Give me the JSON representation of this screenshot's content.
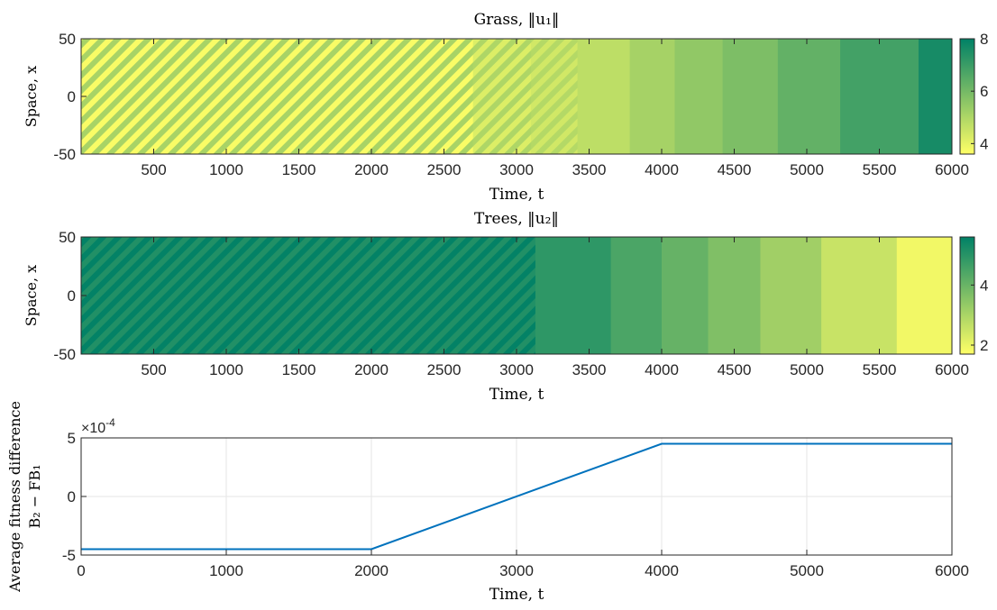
{
  "chart_data": [
    {
      "type": "heatmap",
      "title": "Grass, ‖u₁‖",
      "xlabel": "Time, t",
      "ylabel": "Space, x",
      "xlim": [
        0,
        6000
      ],
      "ylim": [
        -50,
        50
      ],
      "xticks": [
        "500",
        "1000",
        "1500",
        "2000",
        "2500",
        "3000",
        "3500",
        "4000",
        "4500",
        "5000",
        "5500",
        "6000"
      ],
      "yticks": [
        "-50",
        "0",
        "50"
      ],
      "colorbar": {
        "min": 3.6,
        "max": 8,
        "ticks": [
          "4",
          "6",
          "8"
        ]
      },
      "striped_until": 3420,
      "bands": [
        {
          "start": 0,
          "end": 2700,
          "value": 4.5,
          "stripe_low": 3.7,
          "stripe_high": 5.1
        },
        {
          "start": 2700,
          "end": 3100,
          "value": 4.6,
          "stripe_low": 4.2,
          "stripe_high": 5.0
        },
        {
          "start": 3100,
          "end": 3420,
          "value": 4.7,
          "stripe_low": 4.4,
          "stripe_high": 4.9
        },
        {
          "start": 3420,
          "end": 3780,
          "value": 4.75
        },
        {
          "start": 3780,
          "end": 4090,
          "value": 5.15
        },
        {
          "start": 4090,
          "end": 4420,
          "value": 5.5
        },
        {
          "start": 4420,
          "end": 4800,
          "value": 5.85
        },
        {
          "start": 4800,
          "end": 5230,
          "value": 6.3
        },
        {
          "start": 5230,
          "end": 5770,
          "value": 6.85
        },
        {
          "start": 5770,
          "end": 6000,
          "value": 7.6
        }
      ]
    },
    {
      "type": "heatmap",
      "title": "Trees, ‖u₂‖",
      "xlabel": "Time, t",
      "ylabel": "Space, x",
      "xlim": [
        0,
        6000
      ],
      "ylim": [
        -50,
        50
      ],
      "xticks": [
        "500",
        "1000",
        "1500",
        "2000",
        "2500",
        "3000",
        "3500",
        "4000",
        "4500",
        "5000",
        "5500",
        "6000"
      ],
      "yticks": [
        "-50",
        "0",
        "50"
      ],
      "colorbar": {
        "min": 1.7,
        "max": 5.6,
        "ticks": [
          "2",
          "4"
        ]
      },
      "striped_until": 3130,
      "bands": [
        {
          "start": 0,
          "end": 3130,
          "value": 5.3,
          "stripe_low": 5.1,
          "stripe_high": 5.55
        },
        {
          "start": 3130,
          "end": 3650,
          "value": 4.9
        },
        {
          "start": 3650,
          "end": 4000,
          "value": 4.45
        },
        {
          "start": 4000,
          "end": 4320,
          "value": 4.05
        },
        {
          "start": 4320,
          "end": 4680,
          "value": 3.65
        },
        {
          "start": 4680,
          "end": 5100,
          "value": 3.15
        },
        {
          "start": 5100,
          "end": 5620,
          "value": 2.55
        },
        {
          "start": 5620,
          "end": 6000,
          "value": 1.9
        }
      ]
    },
    {
      "type": "line",
      "title": "",
      "xlabel": "Time, t",
      "ylabel_line1": "Average fitness difference",
      "ylabel_line2": "B₂ − FB₁",
      "xlim": [
        0,
        6000
      ],
      "ylim": [
        -5,
        5
      ],
      "scale_base": "×10",
      "scale_exp": "-4",
      "xticks": [
        "0",
        "1000",
        "2000",
        "3000",
        "4000",
        "5000",
        "6000"
      ],
      "yticks": [
        "-5",
        "0",
        "5"
      ],
      "grid": true,
      "color": "#0072BD",
      "series": [
        {
          "x": [
            0,
            2000,
            4000,
            6000
          ],
          "values": [
            -4.5,
            -4.5,
            4.5,
            4.5
          ]
        }
      ]
    }
  ]
}
